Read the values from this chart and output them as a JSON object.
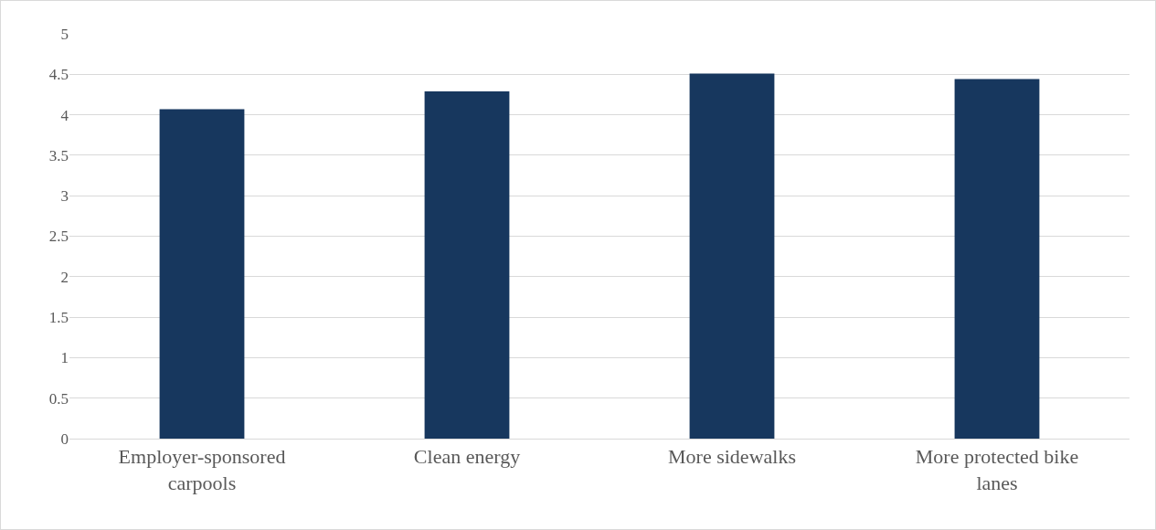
{
  "chart_data": {
    "type": "bar",
    "categories": [
      "Employer-sponsored carpools",
      "Clean energy",
      "More sidewalks",
      "More protected bike lanes"
    ],
    "values": [
      4.07,
      4.29,
      4.51,
      4.44
    ],
    "color": "#17375e",
    "ylim": [
      0,
      5
    ],
    "yticks": [
      0,
      0.5,
      1,
      1.5,
      2,
      2.5,
      3,
      3.5,
      4,
      4.5,
      5
    ],
    "grid": "y"
  }
}
